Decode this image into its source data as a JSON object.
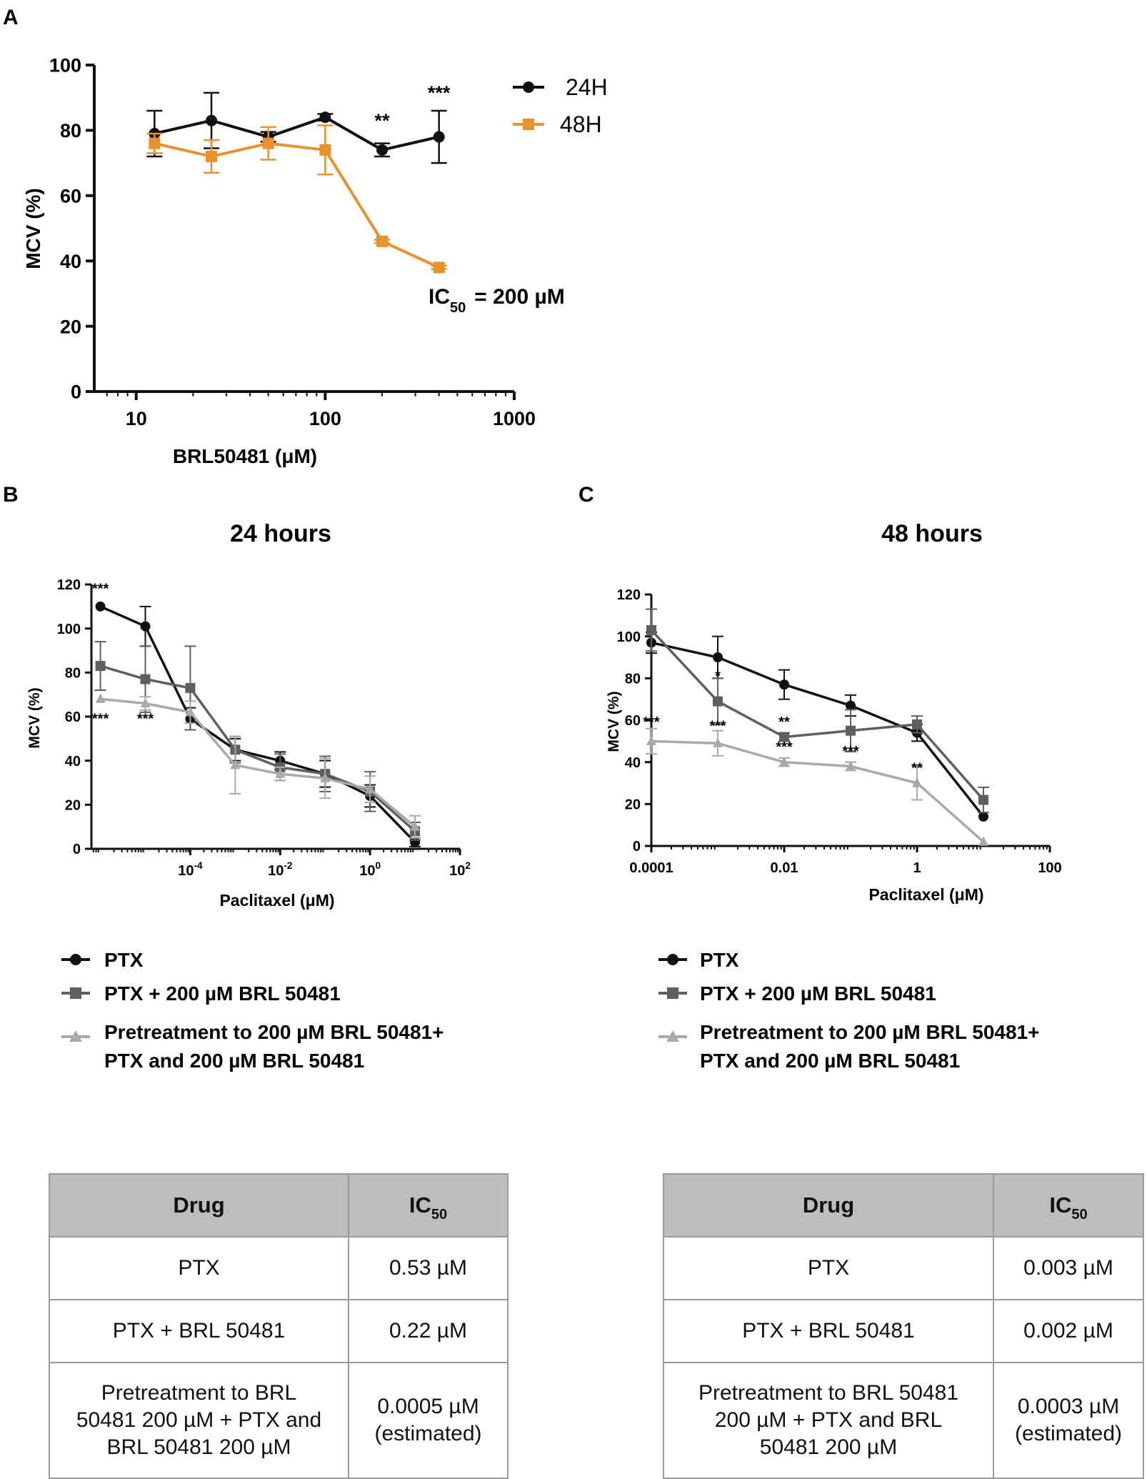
{
  "panels": {
    "a": "A",
    "b": "B",
    "c": "C"
  },
  "colors": {
    "black": "#111111",
    "orange": "#e8912d",
    "dark_gray": "#5f5f5f",
    "light_gray": "#a9a9a9"
  },
  "chart_data": [
    {
      "id": "A",
      "type": "line",
      "title": "",
      "xlabel": "BRL50481 (μM)",
      "ylabel": "MCV (%)",
      "xscale": "log",
      "xlim": [
        6,
        1000
      ],
      "ylim": [
        0,
        100
      ],
      "xticks": [
        10,
        100,
        1000
      ],
      "xtick_labels": [
        "10",
        "100",
        "1000"
      ],
      "yticks": [
        0,
        20,
        40,
        60,
        80,
        100
      ],
      "ytick_labels": [
        "0",
        "20",
        "40",
        "60",
        "80",
        "100"
      ],
      "legend_position": "top-right",
      "series": [
        {
          "name": "24H",
          "color": "#111111",
          "marker": "circle",
          "x": [
            12.5,
            25,
            50,
            100,
            200,
            400
          ],
          "y": [
            79,
            83,
            78,
            84,
            74,
            78
          ],
          "err": [
            7,
            8.5,
            1.5,
            1,
            2,
            8
          ]
        },
        {
          "name": "48H",
          "color": "#e8912d",
          "marker": "square",
          "x": [
            12.5,
            25,
            50,
            100,
            200,
            400
          ],
          "y": [
            76,
            72,
            76,
            74,
            46,
            38
          ],
          "err": [
            3,
            5,
            5,
            7.5,
            0.5,
            0.5
          ]
        }
      ],
      "annotations": [
        {
          "text": "**",
          "x": 200,
          "y": 81
        },
        {
          "text": "***",
          "x": 400,
          "y": 89.5
        }
      ],
      "ic50": {
        "prefix": "IC",
        "sub": "50",
        "suffix": "= 200 µM"
      }
    },
    {
      "id": "B",
      "type": "line",
      "title": "24 hours",
      "xlabel": "Paclitaxel (μM)",
      "ylabel": "MCV (%)",
      "xscale": "log",
      "xlim": [
        -6.2,
        2
      ],
      "ylim": [
        0,
        120
      ],
      "xticks": [
        -4,
        -2,
        0,
        2
      ],
      "xtick_labels": [
        "10",
        "10",
        "10",
        "10"
      ],
      "xtick_exponents": [
        "-4",
        "-2",
        "0",
        "2"
      ],
      "yticks": [
        0,
        20,
        40,
        60,
        80,
        100,
        120
      ],
      "ytick_labels": [
        "0",
        "20",
        "40",
        "60",
        "80",
        "100",
        "120"
      ],
      "series": [
        {
          "name": "PTX",
          "color": "#111111",
          "marker": "circle",
          "x": [
            -6,
            -5,
            -4,
            -3,
            -2,
            -1,
            0,
            1
          ],
          "y": [
            110,
            101,
            59,
            45,
            40,
            34,
            24,
            3
          ],
          "err": [
            0,
            9,
            5,
            5,
            4,
            6,
            5,
            2
          ]
        },
        {
          "name": "PTX + 200 µM BRL 50481",
          "color": "#5f5f5f",
          "marker": "square",
          "x": [
            -6,
            -5,
            -4,
            -3,
            -2,
            -1,
            0,
            1
          ],
          "y": [
            83,
            77,
            73,
            45,
            37,
            34,
            26,
            8
          ],
          "err": [
            11,
            15,
            19,
            6,
            6,
            8,
            9,
            4
          ]
        },
        {
          "name": "Pretreatment to 200 µM BRL 50481+ PTX and 200 µM BRL 50481",
          "color": "#a9a9a9",
          "marker": "triangle",
          "x": [
            -6,
            -5,
            -4,
            -3,
            -2,
            -1,
            0,
            1
          ],
          "y": [
            68,
            66,
            62,
            38,
            34,
            32,
            27,
            10
          ],
          "err": [
            0,
            3,
            5,
            13,
            3,
            9,
            6,
            5
          ]
        }
      ],
      "annotations": [
        {
          "text": "***",
          "x": -6,
          "y": 116
        },
        {
          "text": "***",
          "x": -6,
          "y": 57
        },
        {
          "text": "***",
          "x": -5,
          "y": 57
        }
      ]
    },
    {
      "id": "C",
      "type": "line",
      "title": "48 hours",
      "xlabel": "Paclitaxel (μM)",
      "ylabel": "MCV (%)",
      "xscale": "log",
      "xlim": [
        -4,
        2
      ],
      "ylim": [
        0,
        120
      ],
      "xticks": [
        -4,
        -2,
        0,
        2
      ],
      "xtick_labels": [
        "0.0001",
        "0.01",
        "1",
        "100"
      ],
      "yticks": [
        0,
        20,
        40,
        60,
        80,
        100,
        120
      ],
      "ytick_labels": [
        "0",
        "20",
        "40",
        "60",
        "80",
        "100",
        "120"
      ],
      "series": [
        {
          "name": "PTX",
          "color": "#111111",
          "marker": "circle",
          "x": [
            -4,
            -3,
            -2,
            -1,
            0,
            1
          ],
          "y": [
            97,
            90,
            77,
            67,
            54,
            14
          ],
          "err": [
            5,
            10,
            7,
            5,
            4,
            0
          ]
        },
        {
          "name": "PTX + 200 µM BRL 50481",
          "color": "#5f5f5f",
          "marker": "square",
          "x": [
            -4,
            -3,
            -2,
            -1,
            0,
            1
          ],
          "y": [
            103,
            69,
            52,
            55,
            58,
            22
          ],
          "err": [
            10,
            11,
            2,
            10,
            4,
            6
          ]
        },
        {
          "name": "Pretreatment to 200 µM BRL 50481+ PTX and 200 µM BRL 50481",
          "color": "#a9a9a9",
          "marker": "triangle",
          "x": [
            -4,
            -3,
            -2,
            -1,
            0,
            1
          ],
          "y": [
            50,
            49,
            40,
            38,
            30,
            2
          ],
          "err": [
            6,
            6,
            2,
            2,
            8,
            0
          ]
        }
      ],
      "annotations": [
        {
          "text": "*",
          "x": -3,
          "y": 79
        },
        {
          "text": "***",
          "x": -4,
          "y": 57
        },
        {
          "text": "***",
          "x": -3,
          "y": 55
        },
        {
          "text": "**",
          "x": -2,
          "y": 57
        },
        {
          "text": "***",
          "x": -2,
          "y": 45
        },
        {
          "text": "***",
          "x": -1,
          "y": 43
        },
        {
          "text": "**",
          "x": 0,
          "y": 35
        }
      ]
    }
  ],
  "legend_bc": [
    "PTX",
    "PTX + 200 µM BRL 50481",
    "Pretreatment to 200 µM BRL 50481+",
    "PTX and 200 µM BRL 50481"
  ],
  "tables": {
    "left": {
      "header_drug": "Drug",
      "header_ic": "IC",
      "header_ic_sub": "50",
      "rows": [
        {
          "drug": "PTX",
          "ic50": "0.53 µM"
        },
        {
          "drug": "PTX + BRL 50481",
          "ic50": "0.22 µM"
        },
        {
          "drug_lines": [
            "Pretreatment to BRL",
            "50481 200 µM + PTX and",
            "BRL 50481 200 µM"
          ],
          "ic50_lines": [
            "0.0005  µM",
            "(estimated)"
          ]
        }
      ]
    },
    "right": {
      "header_drug": "Drug",
      "header_ic": "IC",
      "header_ic_sub": "50",
      "rows": [
        {
          "drug": "PTX",
          "ic50": "0.003 µM"
        },
        {
          "drug": "PTX + BRL 50481",
          "ic50": "0.002 µM"
        },
        {
          "drug_lines": [
            "Pretreatment to BRL 50481",
            "200 µM + PTX and BRL",
            "50481 200 µM"
          ],
          "ic50_lines": [
            "0.0003 µM",
            "(estimated)"
          ]
        }
      ]
    }
  }
}
